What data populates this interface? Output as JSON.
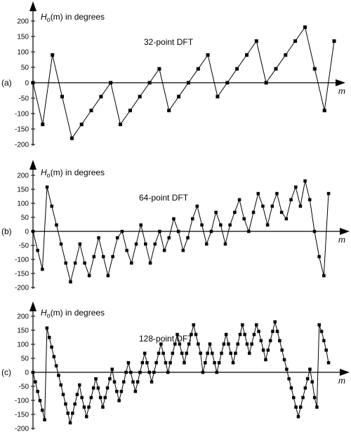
{
  "chart_data": [
    {
      "type": "line",
      "panel_label": "(a)",
      "title": "32-point DFT",
      "ylabel_main": "H",
      "ylabel_sub": "o",
      "ylabel_arg": "(m)",
      "ylabel_rest": " in degrees",
      "xlabel": "m",
      "yticks": [
        200,
        150,
        100,
        50,
        0,
        -50,
        -100,
        -150,
        -200
      ],
      "ylim": [
        -200,
        200
      ],
      "x": [
        0,
        1,
        2,
        3,
        4,
        5,
        6,
        7,
        8,
        9,
        10,
        11,
        12,
        13,
        14,
        15,
        16,
        17,
        18,
        19,
        20,
        21,
        22,
        23,
        24,
        25,
        26,
        27,
        28,
        29,
        30,
        31
      ],
      "values": [
        0,
        -135,
        90,
        -45,
        -180,
        -135,
        -90,
        -45,
        0,
        -135,
        -90,
        -45,
        0,
        45,
        -90,
        -45,
        0,
        45,
        90,
        -45,
        0,
        45,
        90,
        135,
        0,
        45,
        90,
        135,
        180,
        45,
        -90,
        135
      ]
    },
    {
      "type": "line",
      "panel_label": "(b)",
      "title": "64-point DFT",
      "ylabel_main": "H",
      "ylabel_sub": "o",
      "ylabel_arg": "(m)",
      "ylabel_rest": " in degrees",
      "xlabel": "m",
      "yticks": [
        200,
        150,
        100,
        50,
        0,
        -50,
        -100,
        -150,
        -200
      ],
      "ylim": [
        -200,
        200
      ],
      "x": [
        0,
        1,
        2,
        3,
        4,
        5,
        6,
        7,
        8,
        9,
        10,
        11,
        12,
        13,
        14,
        15,
        16,
        17,
        18,
        19,
        20,
        21,
        22,
        23,
        24,
        25,
        26,
        27,
        28,
        29,
        30,
        31,
        32,
        33,
        34,
        35,
        36,
        37,
        38,
        39,
        40,
        41,
        42,
        43,
        44,
        45,
        46,
        47,
        48,
        49,
        50,
        51,
        52,
        53,
        54,
        55,
        56,
        57,
        58,
        59,
        60,
        61,
        62,
        63
      ],
      "values": [
        0,
        -68,
        -135,
        158,
        90,
        23,
        -45,
        -113,
        -180,
        -113,
        -45,
        -113,
        -158,
        -90,
        -23,
        -90,
        -158,
        -90,
        -23,
        0,
        -68,
        -113,
        -45,
        23,
        -45,
        -113,
        -45,
        0,
        -68,
        -23,
        45,
        0,
        -68,
        -23,
        45,
        90,
        23,
        -45,
        0,
        68,
        23,
        -45,
        23,
        68,
        113,
        45,
        0,
        68,
        135,
        90,
        23,
        90,
        135,
        68,
        45,
        113,
        158,
        90,
        180,
        113,
        0,
        -90,
        -158,
        135
      ]
    },
    {
      "type": "line",
      "panel_label": "(c)",
      "title": "128-point DFT",
      "ylabel_main": "H",
      "ylabel_sub": "o",
      "ylabel_arg": "(m)",
      "ylabel_rest": " in degrees",
      "xlabel": "m",
      "yticks": [
        200,
        150,
        100,
        50,
        0,
        -50,
        -100,
        -150,
        -200
      ],
      "ylim": [
        -200,
        200
      ],
      "x": [
        0,
        1,
        2,
        3,
        4,
        5,
        6,
        7,
        8,
        9,
        10,
        11,
        12,
        13,
        14,
        15,
        16,
        17,
        18,
        19,
        20,
        21,
        22,
        23,
        24,
        25,
        26,
        27,
        28,
        29,
        30,
        31,
        32,
        33,
        34,
        35,
        36,
        37,
        38,
        39,
        40,
        41,
        42,
        43,
        44,
        45,
        46,
        47,
        48,
        49,
        50,
        51,
        52,
        53,
        54,
        55,
        56,
        57,
        58,
        59,
        60,
        61,
        62,
        63,
        64,
        65,
        66,
        67,
        68,
        69,
        70,
        71,
        72,
        73,
        74,
        75,
        76,
        77,
        78,
        79,
        80,
        81,
        82,
        83,
        84,
        85,
        86,
        87,
        88,
        89,
        90,
        91,
        92,
        93,
        94,
        95,
        96,
        97,
        98,
        99,
        100,
        101,
        102,
        103,
        104,
        105,
        106,
        107,
        108,
        109,
        110,
        111,
        112,
        113,
        114,
        115,
        116,
        117,
        118,
        119,
        120,
        121,
        122,
        123,
        124,
        125,
        126,
        127
      ],
      "values": [
        0,
        -34,
        -68,
        -101,
        -135,
        -169,
        158,
        124,
        90,
        56,
        23,
        -11,
        -45,
        -79,
        -113,
        -146,
        -180,
        -146,
        -113,
        -79,
        -45,
        -90,
        -124,
        -158,
        -124,
        -90,
        -56,
        -23,
        -56,
        -90,
        -124,
        -90,
        -56,
        -23,
        11,
        -34,
        -68,
        -101,
        -68,
        -34,
        0,
        34,
        0,
        -34,
        -68,
        -34,
        0,
        34,
        68,
        34,
        0,
        -34,
        0,
        34,
        68,
        101,
        68,
        34,
        0,
        34,
        68,
        101,
        135,
        101,
        68,
        34,
        68,
        101,
        135,
        169,
        135,
        101,
        68,
        0,
        34,
        68,
        101,
        68,
        34,
        0,
        34,
        68,
        101,
        135,
        101,
        68,
        34,
        68,
        101,
        135,
        169,
        135,
        101,
        68,
        101,
        135,
        169,
        146,
        113,
        79,
        45,
        79,
        113,
        146,
        180,
        146,
        113,
        79,
        45,
        11,
        -23,
        -56,
        -90,
        -124,
        -158,
        -124,
        -90,
        -56,
        -23,
        11,
        -34,
        -90,
        -124,
        169,
        146,
        113,
        79,
        34
      ]
    }
  ]
}
